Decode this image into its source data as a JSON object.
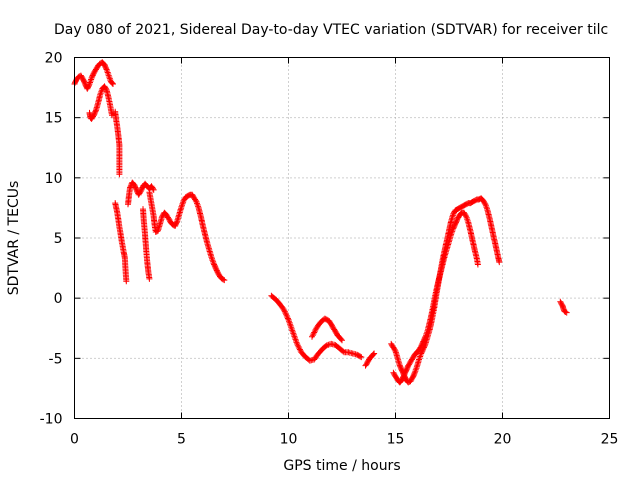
{
  "chart_data": {
    "type": "scatter",
    "title": "Day 080 of 2021, Sidereal Day-to-day VTEC variation (SDTVAR) for receiver tilc",
    "xlabel": "GPS time / hours",
    "ylabel": "SDTVAR / TECUs",
    "xlim": [
      0,
      25
    ],
    "ylim": [
      -10,
      20
    ],
    "xticks": [
      "0",
      "5",
      "10",
      "15",
      "20",
      "25"
    ],
    "yticks": [
      "-10",
      "-5",
      "0",
      "5",
      "10",
      "15",
      "20"
    ],
    "grid": true,
    "marker": "plus",
    "series": [
      {
        "name": "SDTVAR",
        "color": "#ff0000",
        "segments": [
          [
            [
              0.0,
              17.8
            ],
            [
              0.1,
              18.2
            ],
            [
              0.2,
              18.4
            ],
            [
              0.3,
              18.5
            ],
            [
              0.4,
              18.2
            ],
            [
              0.5,
              17.8
            ],
            [
              0.6,
              17.4
            ],
            [
              0.7,
              17.8
            ],
            [
              0.8,
              18.3
            ],
            [
              0.9,
              18.7
            ],
            [
              1.0,
              19.0
            ],
            [
              1.1,
              19.3
            ],
            [
              1.2,
              19.5
            ],
            [
              1.3,
              19.6
            ],
            [
              1.4,
              19.4
            ],
            [
              1.5,
              19.0
            ],
            [
              1.6,
              18.5
            ],
            [
              1.7,
              18.0
            ],
            [
              1.8,
              17.8
            ]
          ],
          [
            [
              0.7,
              15.4
            ],
            [
              0.75,
              15.0
            ],
            [
              0.8,
              14.9
            ],
            [
              0.9,
              15.2
            ],
            [
              1.0,
              15.6
            ],
            [
              1.1,
              16.2
            ],
            [
              1.2,
              16.9
            ],
            [
              1.3,
              17.4
            ],
            [
              1.4,
              17.6
            ],
            [
              1.5,
              17.3
            ],
            [
              1.6,
              16.6
            ],
            [
              1.7,
              15.7
            ],
            [
              1.75,
              15.2
            ]
          ],
          [
            [
              1.9,
              15.5
            ],
            [
              1.95,
              14.8
            ],
            [
              2.0,
              14.2
            ],
            [
              2.05,
              13.5
            ],
            [
              2.1,
              12.7
            ],
            [
              2.1,
              11.6
            ],
            [
              2.1,
              10.3
            ]
          ],
          [
            [
              1.9,
              7.9
            ],
            [
              2.0,
              7.1
            ],
            [
              2.05,
              6.5
            ],
            [
              2.1,
              5.9
            ],
            [
              2.15,
              5.4
            ],
            [
              2.2,
              4.8
            ],
            [
              2.25,
              4.3
            ],
            [
              2.3,
              3.8
            ],
            [
              2.35,
              3.4
            ],
            [
              2.4,
              1.9
            ],
            [
              2.42,
              1.4
            ]
          ],
          [
            [
              2.5,
              7.8
            ],
            [
              2.55,
              8.6
            ],
            [
              2.6,
              9.2
            ],
            [
              2.7,
              9.6
            ],
            [
              2.8,
              9.4
            ],
            [
              2.9,
              9.0
            ],
            [
              3.0,
              8.6
            ],
            [
              3.1,
              8.9
            ],
            [
              3.2,
              9.3
            ],
            [
              3.3,
              9.5
            ],
            [
              3.4,
              9.3
            ],
            [
              3.5,
              9.1
            ],
            [
              3.6,
              9.3
            ],
            [
              3.7,
              9.0
            ]
          ],
          [
            [
              3.2,
              7.4
            ],
            [
              3.25,
              6.2
            ],
            [
              3.3,
              5.2
            ],
            [
              3.35,
              4.0
            ],
            [
              3.4,
              3.0
            ],
            [
              3.45,
              2.2
            ],
            [
              3.5,
              1.6
            ]
          ],
          [
            [
              3.5,
              8.8
            ],
            [
              3.6,
              7.8
            ],
            [
              3.7,
              6.8
            ],
            [
              3.75,
              6.0
            ],
            [
              3.8,
              5.5
            ],
            [
              3.9,
              5.6
            ],
            [
              4.0,
              6.2
            ],
            [
              4.1,
              6.8
            ],
            [
              4.2,
              7.1
            ],
            [
              4.3,
              6.9
            ],
            [
              4.4,
              6.6
            ],
            [
              4.5,
              6.3
            ],
            [
              4.6,
              6.1
            ],
            [
              4.7,
              6.0
            ],
            [
              4.8,
              6.4
            ],
            [
              4.9,
              7.0
            ],
            [
              5.0,
              7.6
            ],
            [
              5.1,
              8.1
            ],
            [
              5.2,
              8.4
            ],
            [
              5.3,
              8.5
            ],
            [
              5.4,
              8.6
            ],
            [
              5.5,
              8.6
            ],
            [
              5.6,
              8.3
            ],
            [
              5.7,
              8.0
            ],
            [
              5.8,
              7.5
            ],
            [
              5.9,
              6.8
            ],
            [
              6.0,
              6.0
            ],
            [
              6.1,
              5.3
            ],
            [
              6.2,
              4.6
            ],
            [
              6.3,
              4.0
            ],
            [
              6.4,
              3.4
            ],
            [
              6.5,
              2.9
            ],
            [
              6.6,
              2.5
            ],
            [
              6.7,
              2.1
            ],
            [
              6.8,
              1.8
            ],
            [
              6.9,
              1.6
            ],
            [
              7.0,
              1.5
            ]
          ],
          [
            [
              9.2,
              0.2
            ],
            [
              9.4,
              -0.1
            ],
            [
              9.6,
              -0.5
            ],
            [
              9.8,
              -1.0
            ],
            [
              10.0,
              -1.8
            ],
            [
              10.2,
              -2.8
            ],
            [
              10.4,
              -3.8
            ],
            [
              10.6,
              -4.5
            ],
            [
              10.8,
              -4.9
            ],
            [
              11.0,
              -5.2
            ],
            [
              11.2,
              -5.1
            ],
            [
              11.4,
              -4.6
            ],
            [
              11.6,
              -4.2
            ],
            [
              11.8,
              -3.9
            ],
            [
              12.0,
              -3.8
            ],
            [
              12.2,
              -3.9
            ],
            [
              12.4,
              -4.2
            ],
            [
              12.6,
              -4.5
            ],
            [
              12.8,
              -4.5
            ],
            [
              13.0,
              -4.6
            ],
            [
              13.2,
              -4.7
            ],
            [
              13.4,
              -4.9
            ]
          ],
          [
            [
              11.1,
              -3.2
            ],
            [
              11.3,
              -2.5
            ],
            [
              11.5,
              -2.0
            ],
            [
              11.7,
              -1.7
            ],
            [
              11.9,
              -1.9
            ],
            [
              12.1,
              -2.5
            ],
            [
              12.3,
              -3.1
            ],
            [
              12.5,
              -3.5
            ]
          ],
          [
            [
              13.6,
              -5.6
            ],
            [
              13.7,
              -5.3
            ],
            [
              13.8,
              -5.0
            ],
            [
              13.9,
              -4.8
            ],
            [
              14.0,
              -4.6
            ]
          ],
          [
            [
              14.8,
              -3.8
            ],
            [
              15.0,
              -4.4
            ],
            [
              15.1,
              -5.0
            ],
            [
              15.2,
              -5.6
            ],
            [
              15.3,
              -6.0
            ],
            [
              15.4,
              -6.4
            ],
            [
              15.5,
              -6.8
            ],
            [
              15.6,
              -7.0
            ],
            [
              15.7,
              -6.9
            ],
            [
              15.8,
              -6.6
            ],
            [
              15.9,
              -6.2
            ],
            [
              16.0,
              -5.7
            ],
            [
              16.1,
              -5.1
            ],
            [
              16.2,
              -4.6
            ],
            [
              16.3,
              -4.2
            ],
            [
              16.4,
              -3.8
            ],
            [
              16.5,
              -3.2
            ],
            [
              16.6,
              -2.6
            ],
            [
              16.7,
              -1.8
            ],
            [
              16.8,
              -0.9
            ],
            [
              16.9,
              0.2
            ],
            [
              17.0,
              1.2
            ],
            [
              17.1,
              2.2
            ],
            [
              17.2,
              3.2
            ],
            [
              17.3,
              4.0
            ],
            [
              17.4,
              4.8
            ],
            [
              17.5,
              5.6
            ],
            [
              17.6,
              6.4
            ],
            [
              17.7,
              7.0
            ],
            [
              17.8,
              7.3
            ],
            [
              17.9,
              7.4
            ],
            [
              18.0,
              7.5
            ],
            [
              18.1,
              7.6
            ],
            [
              18.2,
              7.7
            ],
            [
              18.3,
              7.8
            ],
            [
              18.4,
              7.9
            ],
            [
              18.5,
              7.9
            ],
            [
              18.6,
              8.0
            ],
            [
              18.7,
              8.1
            ],
            [
              18.8,
              8.2
            ],
            [
              18.9,
              8.2
            ],
            [
              19.0,
              8.3
            ],
            [
              19.1,
              8.1
            ],
            [
              19.2,
              7.8
            ],
            [
              19.3,
              7.3
            ],
            [
              19.4,
              6.6
            ],
            [
              19.5,
              5.8
            ],
            [
              19.6,
              5.0
            ],
            [
              19.7,
              4.2
            ],
            [
              19.8,
              3.4
            ],
            [
              19.85,
              3.0
            ]
          ],
          [
            [
              14.9,
              -6.2
            ],
            [
              15.0,
              -6.5
            ],
            [
              15.1,
              -6.8
            ],
            [
              15.2,
              -7.0
            ],
            [
              15.3,
              -6.8
            ],
            [
              15.4,
              -6.4
            ],
            [
              15.5,
              -6.0
            ],
            [
              15.6,
              -5.6
            ],
            [
              15.7,
              -5.3
            ],
            [
              15.8,
              -5.0
            ],
            [
              15.9,
              -4.7
            ],
            [
              16.0,
              -4.5
            ],
            [
              16.1,
              -4.3
            ],
            [
              16.2,
              -4.0
            ],
            [
              16.3,
              -3.6
            ],
            [
              16.4,
              -3.2
            ],
            [
              16.5,
              -2.7
            ],
            [
              16.6,
              -2.0
            ],
            [
              16.7,
              -1.2
            ],
            [
              16.8,
              -0.3
            ],
            [
              16.9,
              0.6
            ],
            [
              17.0,
              1.4
            ],
            [
              17.1,
              2.1
            ],
            [
              17.2,
              2.8
            ],
            [
              17.3,
              3.5
            ],
            [
              17.4,
              4.1
            ],
            [
              17.5,
              4.7
            ],
            [
              17.6,
              5.3
            ],
            [
              17.7,
              5.8
            ],
            [
              17.8,
              6.2
            ],
            [
              17.9,
              6.6
            ],
            [
              18.0,
              6.9
            ],
            [
              18.1,
              7.1
            ],
            [
              18.2,
              7.1
            ],
            [
              18.3,
              6.8
            ],
            [
              18.4,
              6.3
            ],
            [
              18.5,
              5.6
            ],
            [
              18.6,
              4.8
            ],
            [
              18.7,
              4.0
            ],
            [
              18.8,
              3.3
            ],
            [
              18.85,
              2.8
            ]
          ],
          [
            [
              22.7,
              -0.3
            ],
            [
              22.8,
              -0.6
            ],
            [
              22.85,
              -0.9
            ],
            [
              22.9,
              -1.1
            ],
            [
              23.0,
              -1.2
            ]
          ]
        ]
      }
    ]
  }
}
